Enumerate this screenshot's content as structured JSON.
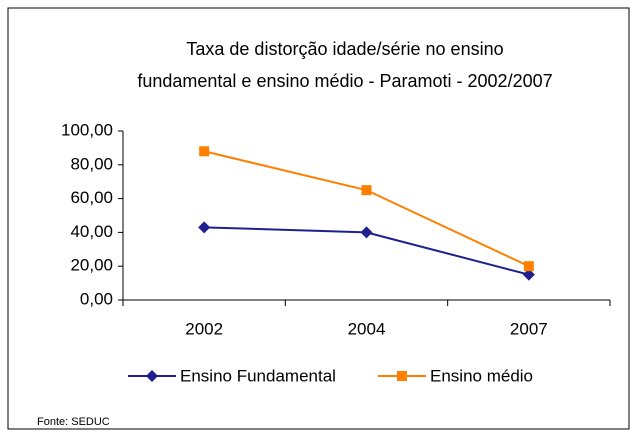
{
  "chart_data": {
    "type": "line",
    "title": [
      "Taxa de distorção idade/série no ensino",
      "fundamental e ensino médio - Paramoti  -  2002/2007"
    ],
    "categories": [
      "2002",
      "2004",
      "2007"
    ],
    "series": [
      {
        "name": "Ensino Fundamental",
        "color": "#1f1f8f",
        "marker": "diamond",
        "values": [
          43,
          40,
          15
        ]
      },
      {
        "name": "Ensino médio",
        "color": "#ff7f00",
        "marker": "square",
        "values": [
          88,
          65,
          20
        ]
      }
    ],
    "ylim": [
      0,
      100
    ],
    "yticks": [
      {
        "value": 0,
        "label": "0,00"
      },
      {
        "value": 20,
        "label": "20,00"
      },
      {
        "value": 40,
        "label": "40,00"
      },
      {
        "value": 60,
        "label": "60,00"
      },
      {
        "value": 80,
        "label": "80,00"
      },
      {
        "value": 100,
        "label": "100,00"
      }
    ],
    "grid": false,
    "legend": "bottom",
    "source": "Fonte: SEDUC"
  }
}
